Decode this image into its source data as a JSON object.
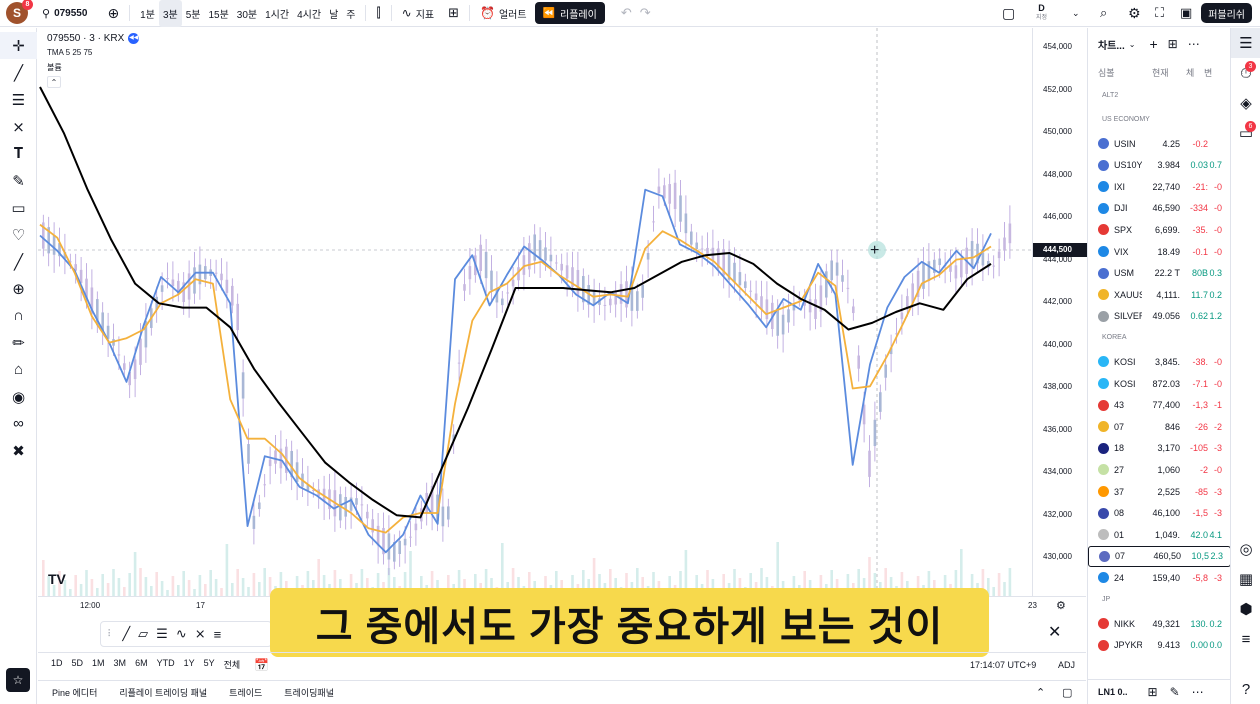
{
  "topbar": {
    "avatar": "S",
    "avatar_badge": "8",
    "symbol": "079550",
    "add_icon": "⊕",
    "timeframes": [
      "1분",
      "3분",
      "5분",
      "15분",
      "30분",
      "1시간",
      "4시간",
      "날",
      "주"
    ],
    "active_timeframe": "3분",
    "indicators": "지표",
    "alerts": "얼러트",
    "replay": "리플레이",
    "layout_badge": "D",
    "layout_sub": "지정",
    "publish": "퍼블리쉬"
  },
  "legend": {
    "title": "079550 · 3 · KRX",
    "indicator": "TMA 5 25 75",
    "volume": "볼륨"
  },
  "price_axis": {
    "labels": [
      "454,000",
      "452,000",
      "450,000",
      "448,000",
      "446,000",
      "444,000",
      "442,000",
      "440,000",
      "438,000",
      "436,000",
      "434,000",
      "432,000",
      "430,000"
    ],
    "current": "444,500"
  },
  "time_axis": {
    "labels": [
      "12:00",
      "17",
      "23"
    ]
  },
  "bottombar": {
    "ranges": [
      "1D",
      "5D",
      "1M",
      "3M",
      "6M",
      "YTD",
      "1Y",
      "5Y",
      "전체"
    ],
    "clock": "17:14:07 UTC+9",
    "adj": "ADJ"
  },
  "bottomtabs": [
    "Pine 에디터",
    "리플레이 트레이딩 패널",
    "트레이드",
    "트레이딩패널"
  ],
  "subtitle": "그 중에서도 가장 중요하게 보는 것이",
  "watchlist": {
    "title": "차트...",
    "columns": [
      "심볼",
      "현재",
      "체",
      "변"
    ],
    "sections": [
      {
        "name": "ALT2",
        "rows": []
      },
      {
        "name": "US ECONOMY",
        "rows": [
          {
            "sym": "USIN",
            "last": "4.25",
            "chg": "-0.2",
            "pct": "",
            "color": "#4a6fd1",
            "pos": false
          },
          {
            "sym": "US10Y",
            "last": "3.984",
            "chg": "0.03",
            "pct": "0.7",
            "color": "#4a6fd1",
            "pos": true
          },
          {
            "sym": "IXI",
            "last": "22,740",
            "chg": "-21:",
            "pct": "-0",
            "color": "#1e88e5",
            "pos": false
          },
          {
            "sym": "DJI",
            "last": "46,590",
            "chg": "-334",
            "pct": "-0",
            "color": "#1e88e5",
            "pos": false
          },
          {
            "sym": "SPX",
            "last": "6,699.",
            "chg": "-35.",
            "pct": "-0",
            "color": "#e53935",
            "pos": false
          },
          {
            "sym": "VIX",
            "last": "18.49",
            "chg": "-0.1",
            "pct": "-0",
            "color": "#1e88e5",
            "pos": false
          },
          {
            "sym": "USM",
            "last": "22.2 T",
            "chg": "80B",
            "pct": "0.3",
            "color": "#4a6fd1",
            "pos": true
          },
          {
            "sym": "XAUUS",
            "last": "4,111.",
            "chg": "11.7",
            "pct": "0.2",
            "color": "#f0b429",
            "pos": true
          },
          {
            "sym": "SILVER",
            "last": "49.056",
            "chg": "0.62",
            "pct": "1.2",
            "color": "#9aa0a6",
            "pos": true
          }
        ]
      },
      {
        "name": "KOREA",
        "rows": [
          {
            "sym": "KOSI",
            "last": "3,845.",
            "chg": "-38.",
            "pct": "-0",
            "color": "#29b6f6",
            "pos": false
          },
          {
            "sym": "KOSI",
            "last": "872.03",
            "chg": "-7.1",
            "pct": "-0",
            "color": "#29b6f6",
            "pos": false
          },
          {
            "sym": "43",
            "last": "77,400",
            "chg": "-1,3",
            "pct": "-1",
            "color": "#e53935",
            "pos": false
          },
          {
            "sym": "07",
            "last": "846",
            "chg": "-26",
            "pct": "-2",
            "color": "#f0b429",
            "pos": false
          },
          {
            "sym": "18",
            "last": "3,170",
            "chg": "-105",
            "pct": "-3",
            "color": "#1a237e",
            "pos": false
          },
          {
            "sym": "27",
            "last": "1,060",
            "chg": "-2",
            "pct": "-0",
            "color": "#c5e1a5",
            "pos": false
          },
          {
            "sym": "37",
            "last": "2,525",
            "chg": "-85",
            "pct": "-3",
            "color": "#ff9800",
            "pos": false
          },
          {
            "sym": "08",
            "last": "46,100",
            "chg": "-1,5",
            "pct": "-3",
            "color": "#3949ab",
            "pos": false
          },
          {
            "sym": "01",
            "last": "1,049.",
            "chg": "42.0",
            "pct": "4.1",
            "color": "#bdbdbd",
            "pos": true
          },
          {
            "sym": "07",
            "last": "460,50",
            "chg": "10,5",
            "pct": "2.3",
            "color": "#5c6bc0",
            "pos": true,
            "selected": true
          },
          {
            "sym": "24",
            "last": "159,40",
            "chg": "-5,8",
            "pct": "-3",
            "color": "#1e88e5",
            "pos": false
          }
        ]
      },
      {
        "name": "JP",
        "rows": [
          {
            "sym": "NIKK",
            "last": "49,321",
            "chg": "130.",
            "pct": "0.2",
            "color": "#e53935",
            "pos": true
          },
          {
            "sym": "JPYKR",
            "last": "9.413",
            "chg": "0.00",
            "pct": "0.0",
            "color": "#e53935",
            "pos": true
          }
        ]
      }
    ],
    "footer": "LN1 0.."
  },
  "chart_data": {
    "type": "line",
    "ylim": [
      429000,
      455000
    ],
    "series": [
      {
        "color": "#5b8bde",
        "values": [
          445500,
          444800,
          443900,
          442100,
          440600,
          438800,
          441400,
          443600,
          442900,
          443800,
          443800,
          442400,
          432200,
          435400,
          435200,
          434000,
          433600,
          433000,
          433400,
          431800,
          431000,
          431800,
          433600,
          432300,
          443500,
          444600,
          442300,
          443700,
          445000,
          444400,
          443700,
          442800,
          442300,
          442900,
          442400,
          447600,
          447300,
          445100,
          444700,
          444100,
          443200,
          442300,
          441300,
          442600,
          442100,
          444200,
          442800,
          435000,
          439600,
          442200,
          443600,
          444300,
          443800,
          444800,
          444000,
          445600
        ]
      },
      {
        "color": "#f4b13c",
        "values": [
          446000,
          445400,
          443800,
          441800,
          440600,
          440800,
          441200,
          442400,
          442800,
          443500,
          443300,
          438000,
          436200,
          436200,
          435500,
          434400,
          433800,
          433300,
          432800,
          432100,
          431900,
          432600,
          432800,
          432800,
          437800,
          441600,
          442900,
          443300,
          444100,
          444300,
          443700,
          443200,
          442700,
          442800,
          442700,
          444900,
          445700,
          445300,
          444800,
          444300,
          443500,
          442700,
          441900,
          442200,
          442500,
          443800,
          443200,
          438500,
          438600,
          440000,
          441600,
          443300,
          443700,
          444400,
          444500,
          445000
        ]
      },
      {
        "color": "#000000",
        "values": [
          452300,
          450200,
          447600,
          445300,
          443300,
          442400,
          442200,
          442200,
          441300,
          439400,
          437900,
          436500,
          435100,
          434200,
          433400,
          432700,
          432600,
          435100,
          437600,
          440300,
          443100,
          443100,
          443100,
          443000,
          442900,
          443100,
          443700,
          444300,
          444600,
          444700,
          444200,
          443300,
          442600,
          442100,
          441200,
          441500,
          442000,
          442400,
          442100,
          443500,
          444200
        ]
      }
    ]
  }
}
